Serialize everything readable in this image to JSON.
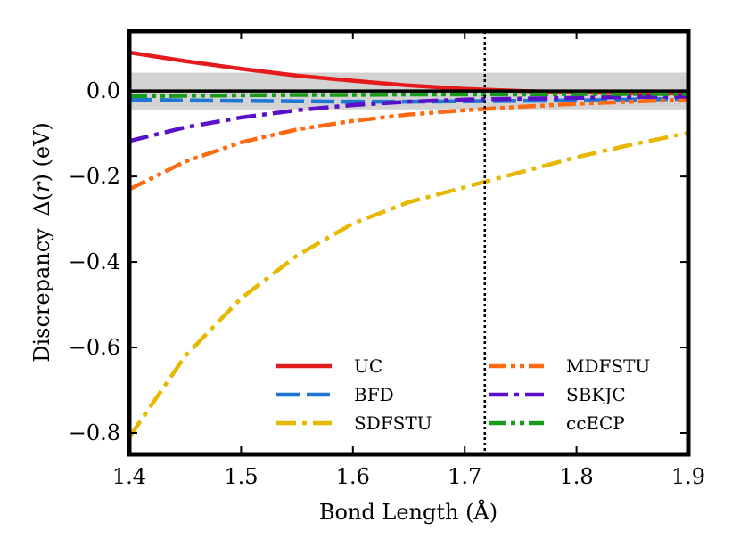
{
  "chart_data": {
    "type": "line",
    "title": "",
    "xlabel": "Bond Length (Å)",
    "ylabel_prefix": "Discrepancy",
    "ylabel_symbol": "Δ(",
    "ylabel_var": "r",
    "ylabel_suffix": ") (eV)",
    "xlim": [
      1.4,
      1.9
    ],
    "ylim": [
      -0.85,
      0.14
    ],
    "x_ticks": [
      1.4,
      1.5,
      1.6,
      1.7,
      1.8,
      1.9
    ],
    "x_tick_labels": [
      "1.4",
      "1.5",
      "1.6",
      "1.7",
      "1.8",
      "1.9"
    ],
    "y_ticks": [
      0.0,
      -0.2,
      -0.4,
      -0.6,
      -0.8
    ],
    "y_tick_labels": [
      "0.0",
      "−0.2",
      "−0.4",
      "−0.6",
      "−0.8"
    ],
    "chemical_accuracy_band": [
      -0.043,
      0.043
    ],
    "band_color": "#d3d3d3",
    "reference_line_y": 0.0,
    "vertical_marker_x": 1.718,
    "grid": false,
    "legend_position": "lower-right",
    "x": [
      1.4,
      1.45,
      1.5,
      1.55,
      1.6,
      1.65,
      1.7,
      1.75,
      1.8,
      1.85,
      1.9
    ],
    "series": [
      {
        "name": "UC",
        "color": "#e41a1c",
        "dash": "solid",
        "values": [
          0.09,
          0.07,
          0.052,
          0.036,
          0.024,
          0.013,
          0.005,
          0.0,
          -0.003,
          -0.005,
          -0.006
        ]
      },
      {
        "name": "BFD",
        "color": "#1f77d4",
        "dash": "dashed",
        "values": [
          -0.02,
          -0.022,
          -0.023,
          -0.024,
          -0.025,
          -0.025,
          -0.024,
          -0.023,
          -0.022,
          -0.02,
          -0.018
        ]
      },
      {
        "name": "SDFSTU",
        "color": "#e6b800",
        "dash": "dashdot",
        "values": [
          -0.81,
          -0.62,
          -0.485,
          -0.385,
          -0.31,
          -0.26,
          -0.225,
          -0.19,
          -0.155,
          -0.125,
          -0.098
        ]
      },
      {
        "name": "MDFSTU",
        "color": "#ff6a13",
        "dash": "dashdotdot",
        "values": [
          -0.23,
          -0.165,
          -0.12,
          -0.09,
          -0.07,
          -0.055,
          -0.045,
          -0.037,
          -0.03,
          -0.025,
          -0.02
        ]
      },
      {
        "name": "SBKJC",
        "color": "#5a10c8",
        "dash": "dashdot",
        "values": [
          -0.117,
          -0.085,
          -0.062,
          -0.045,
          -0.033,
          -0.025,
          -0.02,
          -0.018,
          -0.016,
          -0.014,
          -0.013
        ]
      },
      {
        "name": "ccECP",
        "color": "#1a9a1a",
        "dash": "dashdotdot",
        "values": [
          -0.012,
          -0.011,
          -0.01,
          -0.009,
          -0.009,
          -0.008,
          -0.008,
          -0.008,
          -0.007,
          -0.007,
          -0.007
        ]
      }
    ]
  }
}
